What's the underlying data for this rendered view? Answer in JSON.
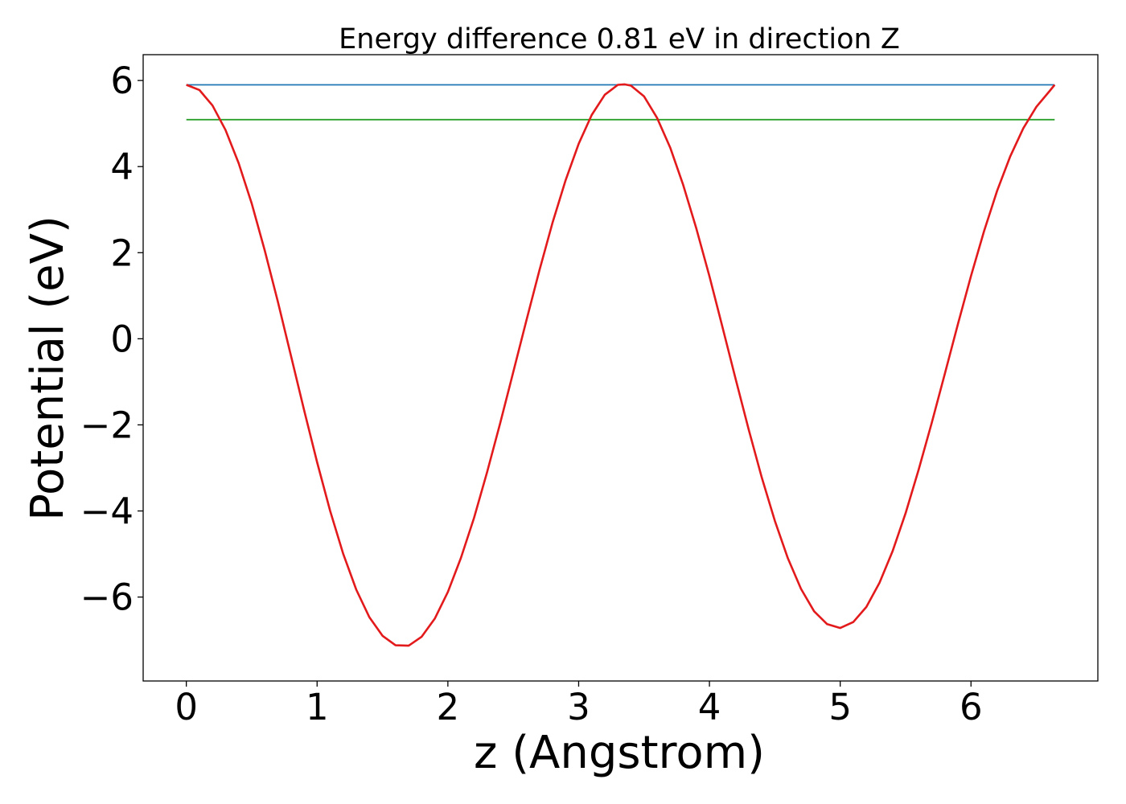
{
  "chart_data": {
    "type": "line",
    "title": "Energy difference 0.81 eV in direction Z",
    "xlabel": "z (Angstrom)",
    "ylabel": "Potential (eV)",
    "xlim": [
      -0.33,
      6.97
    ],
    "ylim": [
      -7.95,
      6.6
    ],
    "xticks": [
      0,
      1,
      2,
      3,
      4,
      5,
      6
    ],
    "xtick_labels": [
      "0",
      "1",
      "2",
      "3",
      "4",
      "5",
      "6"
    ],
    "yticks": [
      -6,
      -4,
      -2,
      0,
      2,
      4,
      6
    ],
    "ytick_labels": [
      "−6",
      "−4",
      "−2",
      "0",
      "2",
      "4",
      "6"
    ],
    "grid": false,
    "legend": "none",
    "colors": {
      "potential": "#e31a1c",
      "max_level": "#1f77b4",
      "lower_level": "#2ca02c"
    },
    "series": [
      {
        "kind": "curve",
        "x": [
          0.0,
          0.1,
          0.2,
          0.3,
          0.4,
          0.5,
          0.6,
          0.7,
          0.8,
          0.9,
          1.0,
          1.1,
          1.2,
          1.3,
          1.4,
          1.5,
          1.6,
          1.7,
          1.8,
          1.9,
          2.0,
          2.1,
          2.2,
          2.3,
          2.4,
          2.5,
          2.6,
          2.7,
          2.8,
          2.9,
          3.0,
          3.1,
          3.2,
          3.3,
          3.35,
          3.4,
          3.5,
          3.6,
          3.7,
          3.8,
          3.9,
          4.0,
          4.1,
          4.2,
          4.3,
          4.4,
          4.5,
          4.6,
          4.7,
          4.8,
          4.9,
          5.0,
          5.1,
          5.2,
          5.3,
          5.4,
          5.5,
          5.6,
          5.7,
          5.8,
          5.9,
          6.0,
          6.1,
          6.2,
          6.3,
          6.4,
          6.5,
          6.6,
          6.64
        ],
        "y": [
          5.9,
          5.78,
          5.42,
          4.85,
          4.08,
          3.14,
          2.05,
          0.86,
          -0.39,
          -1.65,
          -2.87,
          -4.0,
          -5.0,
          -5.83,
          -6.47,
          -6.9,
          -7.12,
          -7.13,
          -6.92,
          -6.5,
          -5.88,
          -5.09,
          -4.16,
          -3.1,
          -1.96,
          -0.77,
          0.42,
          1.59,
          2.69,
          3.68,
          4.53,
          5.2,
          5.67,
          5.9,
          5.91,
          5.88,
          5.63,
          5.13,
          4.44,
          3.57,
          2.56,
          1.45,
          0.27,
          -0.93,
          -2.11,
          -3.22,
          -4.23,
          -5.1,
          -5.81,
          -6.33,
          -6.63,
          -6.72,
          -6.58,
          -6.23,
          -5.67,
          -4.94,
          -4.05,
          -3.04,
          -1.95,
          -0.81,
          0.34,
          1.46,
          2.5,
          3.44,
          4.24,
          4.89,
          5.39,
          5.75,
          5.9
        ]
      },
      {
        "kind": "level",
        "x": [
          0.0,
          6.64
        ],
        "y": [
          5.9,
          5.9
        ]
      },
      {
        "kind": "level",
        "x": [
          0.0,
          6.64
        ],
        "y": [
          5.09,
          5.09
        ]
      }
    ]
  }
}
